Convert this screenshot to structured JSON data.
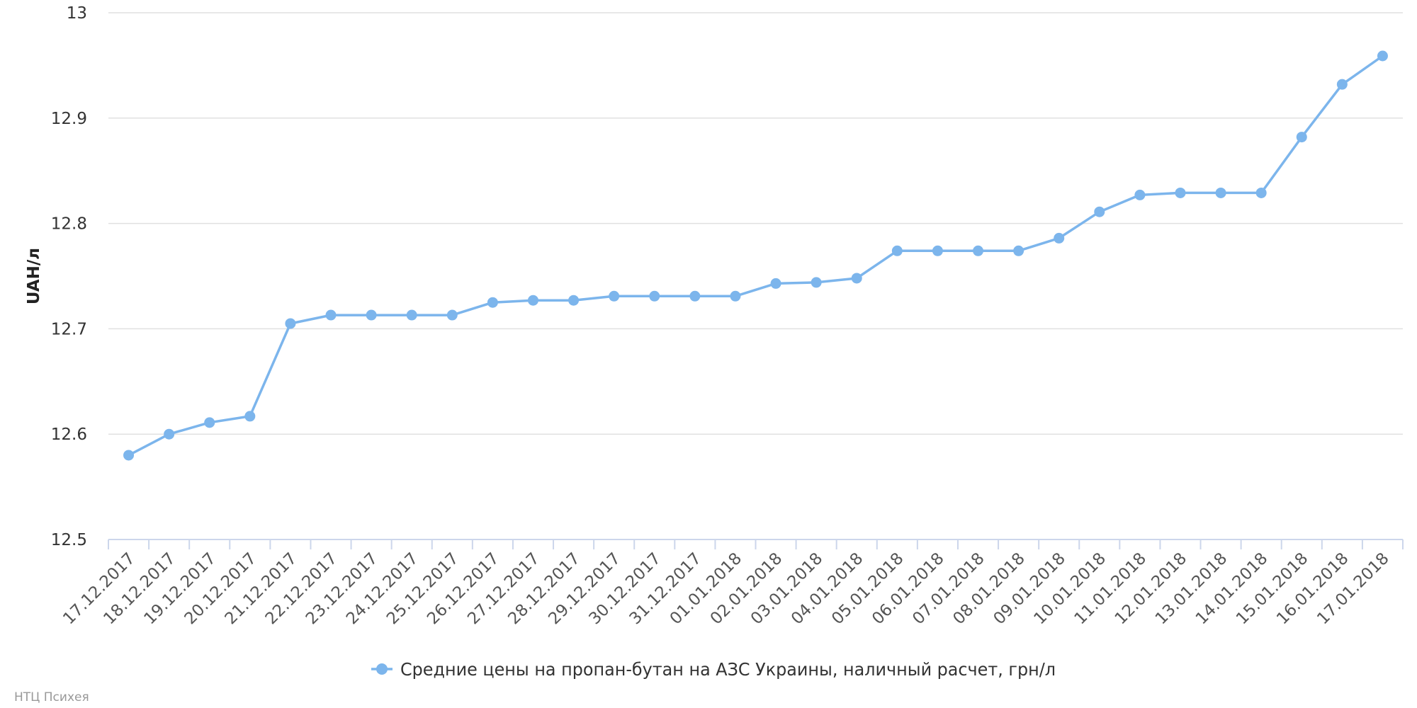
{
  "chart_data": {
    "type": "line",
    "ylabel": "UAH/л",
    "ylim": [
      12.5,
      13.0
    ],
    "yticks": [
      "12.5",
      "12.6",
      "12.7",
      "12.8",
      "12.9",
      "13"
    ],
    "grid": "horizontal",
    "legend_position": "bottom-center",
    "categories": [
      "17.12.2017",
      "18.12.2017",
      "19.12.2017",
      "20.12.2017",
      "21.12.2017",
      "22.12.2017",
      "23.12.2017",
      "24.12.2017",
      "25.12.2017",
      "26.12.2017",
      "27.12.2017",
      "28.12.2017",
      "29.12.2017",
      "30.12.2017",
      "31.12.2017",
      "01.01.2018",
      "02.01.2018",
      "03.01.2018",
      "04.01.2018",
      "05.01.2018",
      "06.01.2018",
      "07.01.2018",
      "08.01.2018",
      "09.01.2018",
      "10.01.2018",
      "11.01.2018",
      "12.01.2018",
      "13.01.2018",
      "14.01.2018",
      "15.01.2018",
      "16.01.2018",
      "17.01.2018"
    ],
    "series": [
      {
        "name": "Средние цены на пропан-бутан на АЗС Украины, наличный расчет, грн/л",
        "color": "#7cb5ec",
        "values": [
          12.58,
          12.6,
          12.611,
          12.617,
          12.705,
          12.713,
          12.713,
          12.713,
          12.713,
          12.725,
          12.727,
          12.727,
          12.731,
          12.731,
          12.731,
          12.731,
          12.743,
          12.744,
          12.748,
          12.774,
          12.774,
          12.774,
          12.774,
          12.786,
          12.811,
          12.827,
          12.829,
          12.829,
          12.829,
          12.882,
          12.932,
          12.959
        ]
      }
    ]
  },
  "credit": "НТЦ Психея"
}
